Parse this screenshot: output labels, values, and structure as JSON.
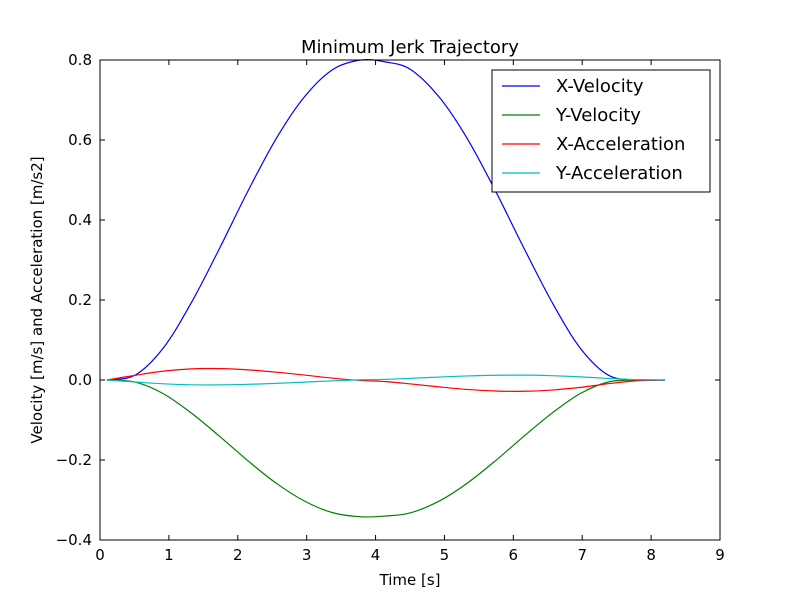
{
  "chart_data": {
    "type": "line",
    "title": "Minimum Jerk Trajectory",
    "xlabel": "Time [s]",
    "ylabel": "Velocity [m/s] and Acceleration [m/s2]",
    "xlim": [
      0,
      9
    ],
    "ylim": [
      -0.4,
      0.8
    ],
    "xticks": [
      0,
      1,
      2,
      3,
      4,
      5,
      6,
      7,
      8,
      9
    ],
    "yticks": [
      -0.4,
      -0.2,
      0.0,
      0.2,
      0.4,
      0.6,
      0.8
    ],
    "xtick_labels": [
      "0",
      "1",
      "2",
      "3",
      "4",
      "5",
      "6",
      "7",
      "8",
      "9"
    ],
    "ytick_labels": [
      "−0.4",
      "−0.2",
      "0.0",
      "0.2",
      "0.4",
      "0.6",
      "0.8"
    ],
    "grid": false,
    "legend_position": "top-right",
    "series": [
      {
        "name": "X-Velocity",
        "color": "#0000ff",
        "x": [
          0.1,
          0.51,
          0.92,
          1.33,
          1.74,
          2.15,
          2.56,
          2.97,
          3.38,
          3.79,
          4.15,
          4.51,
          4.92,
          5.33,
          5.74,
          6.15,
          6.56,
          6.97,
          7.38,
          7.79,
          8.2
        ],
        "y": [
          0.0,
          0.0122,
          0.0803,
          0.1945,
          0.3307,
          0.4731,
          0.6042,
          0.7083,
          0.7763,
          0.8,
          0.795,
          0.776,
          0.708,
          0.604,
          0.473,
          0.331,
          0.195,
          0.08,
          0.012,
          0.0,
          0.0
        ]
      },
      {
        "name": "Y-Velocity",
        "color": "#008000",
        "x": [
          0.1,
          0.51,
          0.92,
          1.33,
          1.74,
          2.15,
          2.56,
          2.97,
          3.38,
          3.79,
          4.15,
          4.51,
          4.92,
          5.33,
          5.74,
          6.15,
          6.56,
          6.97,
          7.38,
          7.79,
          8.2
        ],
        "y": [
          0.0,
          -0.0052,
          -0.0343,
          -0.0832,
          -0.1414,
          -0.2023,
          -0.2583,
          -0.3028,
          -0.3319,
          -0.342,
          -0.34,
          -0.332,
          -0.303,
          -0.258,
          -0.202,
          -0.141,
          -0.083,
          -0.034,
          -0.005,
          0.0,
          0.0
        ]
      },
      {
        "name": "X-Acceleration",
        "color": "#ff0000",
        "x": [
          0.1,
          0.51,
          0.92,
          1.33,
          1.74,
          2.15,
          2.56,
          2.97,
          3.38,
          3.79,
          4.15,
          4.51,
          4.92,
          5.33,
          5.74,
          6.15,
          6.56,
          6.97,
          7.38,
          7.79,
          8.2
        ],
        "y": [
          0.0,
          0.0117,
          0.0222,
          0.0279,
          0.0284,
          0.0253,
          0.0196,
          0.0123,
          0.0046,
          -0.0012,
          -0.004,
          -0.0098,
          -0.0172,
          -0.0236,
          -0.0275,
          -0.0282,
          -0.0251,
          -0.0185,
          -0.0092,
          -0.002,
          0.0
        ]
      },
      {
        "name": "Y-Acceleration",
        "color": "#00bfbf",
        "x": [
          0.1,
          0.51,
          0.92,
          1.33,
          1.74,
          2.15,
          2.56,
          2.97,
          3.38,
          3.79,
          4.15,
          4.51,
          4.92,
          5.33,
          5.74,
          6.15,
          6.56,
          6.97,
          7.38,
          7.79,
          8.2
        ],
        "y": [
          0.0,
          -0.005,
          -0.0095,
          -0.012,
          -0.0122,
          -0.0108,
          -0.0084,
          -0.0053,
          -0.002,
          0.0005,
          0.0017,
          0.0042,
          0.0074,
          0.0101,
          0.0118,
          0.0121,
          0.0108,
          0.0079,
          0.0039,
          0.0009,
          0.0
        ]
      }
    ]
  }
}
